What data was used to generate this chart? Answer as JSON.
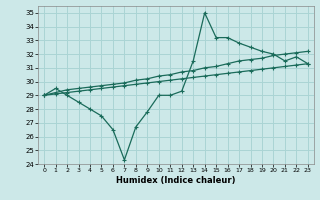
{
  "xlabel": "Humidex (Indice chaleur)",
  "ylabel": "",
  "background_color": "#cce8e8",
  "grid_color": "#aad4d4",
  "line_color": "#1a6b5a",
  "xlim": [
    -0.5,
    23.5
  ],
  "ylim": [
    24,
    35.5
  ],
  "yticks": [
    24,
    25,
    26,
    27,
    28,
    29,
    30,
    31,
    32,
    33,
    34,
    35
  ],
  "xticks": [
    0,
    1,
    2,
    3,
    4,
    5,
    6,
    7,
    8,
    9,
    10,
    11,
    12,
    13,
    14,
    15,
    16,
    17,
    18,
    19,
    20,
    21,
    22,
    23
  ],
  "main_x": [
    0,
    1,
    2,
    3,
    4,
    5,
    6,
    7,
    8,
    9,
    10,
    11,
    12,
    13,
    14,
    15,
    16,
    17,
    18,
    19,
    20,
    21,
    22,
    23
  ],
  "main_y": [
    29.0,
    29.5,
    29.0,
    28.5,
    28.0,
    27.5,
    26.5,
    24.3,
    26.7,
    27.8,
    29.0,
    29.0,
    29.3,
    31.5,
    35.0,
    33.2,
    33.2,
    32.8,
    32.5,
    32.2,
    32.0,
    31.5,
    31.8,
    31.3
  ],
  "upper_x": [
    0,
    1,
    2,
    3,
    4,
    5,
    6,
    7,
    8,
    9,
    10,
    11,
    12,
    13,
    14,
    15,
    16,
    17,
    18,
    19,
    20,
    21,
    22,
    23
  ],
  "upper_y": [
    29.0,
    29.2,
    29.4,
    29.5,
    29.6,
    29.7,
    29.8,
    29.9,
    30.1,
    30.2,
    30.4,
    30.5,
    30.7,
    30.8,
    31.0,
    31.1,
    31.3,
    31.5,
    31.6,
    31.7,
    31.9,
    32.0,
    32.1,
    32.2
  ],
  "lower_x": [
    0,
    1,
    2,
    3,
    4,
    5,
    6,
    7,
    8,
    9,
    10,
    11,
    12,
    13,
    14,
    15,
    16,
    17,
    18,
    19,
    20,
    21,
    22,
    23
  ],
  "lower_y": [
    29.0,
    29.1,
    29.2,
    29.3,
    29.4,
    29.5,
    29.6,
    29.7,
    29.8,
    29.9,
    30.0,
    30.1,
    30.2,
    30.3,
    30.4,
    30.5,
    30.6,
    30.7,
    30.8,
    30.9,
    31.0,
    31.1,
    31.2,
    31.3
  ]
}
